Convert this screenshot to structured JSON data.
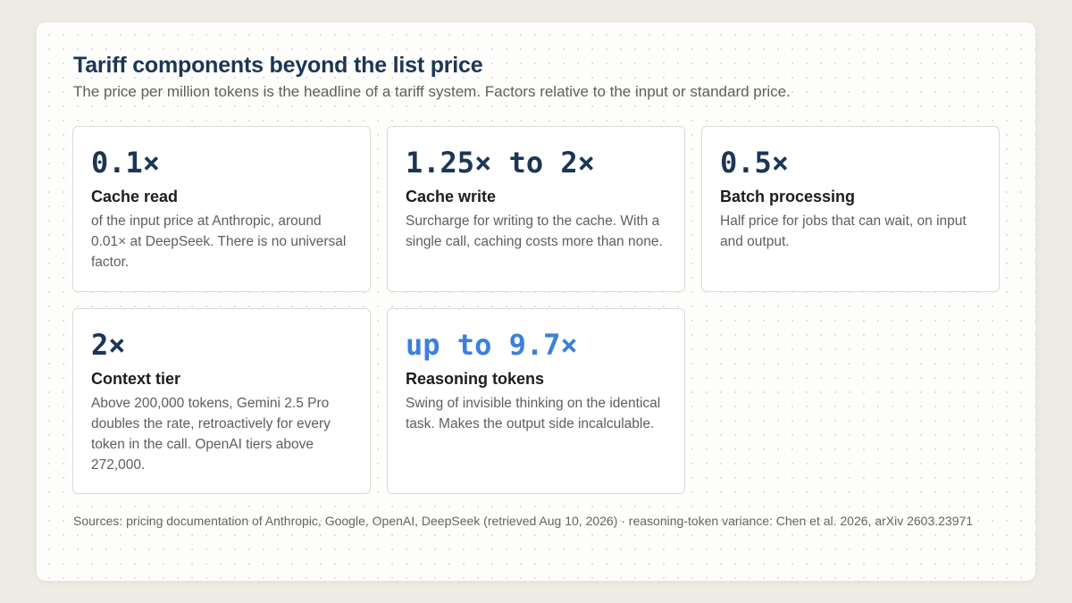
{
  "header": {
    "title": "Tariff components beyond the list price",
    "subtitle": "The price per million tokens is the headline of a tariff system. Factors relative to the input or standard price."
  },
  "tiles": [
    {
      "figure": "0.1×",
      "label": "Cache read",
      "description": "of the input price at Anthropic, around 0.01× at DeepSeek. There is no universal factor."
    },
    {
      "figure": "1.25× to 2×",
      "label": "Cache write",
      "description": "Surcharge for writing to the cache. With a single call, caching costs more than none."
    },
    {
      "figure": "0.5×",
      "label": "Batch processing",
      "description": "Half price for jobs that can wait, on input and output."
    },
    {
      "figure": "2×",
      "label": "Context tier",
      "description": "Above 200,000 tokens, Gemini 2.5 Pro doubles the rate, retroactively for every token in the call. OpenAI tiers above 272,000."
    },
    {
      "figure": "up to 9.7×",
      "label": "Reasoning tokens",
      "description": "Swing of invisible thinking on the identical task. Makes the output side incalculable."
    }
  ],
  "footer": {
    "sources": "Sources: pricing documentation of Anthropic, Google, OpenAI, DeepSeek (retrieved Aug 10, 2026) · reasoning-token variance: Chen et al. 2026, arXiv 2603.23971"
  },
  "colors": {
    "page_background": "#efebe5",
    "card_background": "#fdfdfc",
    "heading": "#1c3655",
    "accent_figure": "#3c7fdc",
    "body_text": "#5f5e5b"
  }
}
